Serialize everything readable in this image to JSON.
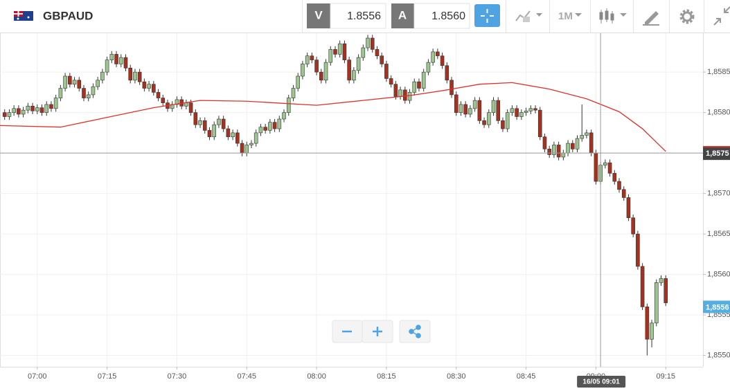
{
  "toolbar": {
    "symbol": "GBPAUD",
    "bid_label": "V",
    "bid": "1.8556",
    "ask_label": "A",
    "ask": "1.8560",
    "timeframe": "1M"
  },
  "chart_data": {
    "type": "candlestick",
    "up_color": "#9cc58f",
    "down_color": "#a5321f",
    "x": [
      "06:53",
      "06:54",
      "06:55",
      "06:56",
      "06:57",
      "06:58",
      "06:59",
      "07:00",
      "07:01",
      "07:02",
      "07:03",
      "07:04",
      "07:05",
      "07:06",
      "07:07",
      "07:08",
      "07:09",
      "07:10",
      "07:11",
      "07:12",
      "07:13",
      "07:14",
      "07:15",
      "07:16",
      "07:17",
      "07:18",
      "07:19",
      "07:20",
      "07:21",
      "07:22",
      "07:23",
      "07:24",
      "07:25",
      "07:26",
      "07:27",
      "07:28",
      "07:29",
      "07:30",
      "07:31",
      "07:32",
      "07:33",
      "07:34",
      "07:35",
      "07:36",
      "07:37",
      "07:38",
      "07:39",
      "07:40",
      "07:41",
      "07:42",
      "07:43",
      "07:44",
      "07:45",
      "07:46",
      "07:47",
      "07:48",
      "07:49",
      "07:50",
      "07:51",
      "07:52",
      "07:53",
      "07:54",
      "07:55",
      "07:56",
      "07:57",
      "07:58",
      "07:59",
      "08:00",
      "08:01",
      "08:02",
      "08:03",
      "08:04",
      "08:05",
      "08:06",
      "08:07",
      "08:08",
      "08:09",
      "08:10",
      "08:11",
      "08:12",
      "08:13",
      "08:14",
      "08:15",
      "08:16",
      "08:17",
      "08:18",
      "08:19",
      "08:20",
      "08:21",
      "08:22",
      "08:23",
      "08:24",
      "08:25",
      "08:26",
      "08:27",
      "08:28",
      "08:29",
      "08:30",
      "08:31",
      "08:32",
      "08:33",
      "08:34",
      "08:35",
      "08:36",
      "08:37",
      "08:38",
      "08:39",
      "08:40",
      "08:41",
      "08:42",
      "08:43",
      "08:44",
      "08:45",
      "08:46",
      "08:47",
      "08:48",
      "08:49",
      "08:50",
      "08:51",
      "08:52",
      "08:53",
      "08:54",
      "08:55",
      "08:56",
      "08:57",
      "08:58",
      "08:59",
      "09:00",
      "09:01",
      "09:02",
      "09:03",
      "09:04",
      "09:05",
      "09:06",
      "09:07",
      "09:08",
      "09:09",
      "09:10",
      "09:11",
      "09:12",
      "09:13",
      "09:14",
      "09:15"
    ],
    "open": [
      1.858,
      1.85795,
      1.858,
      1.85805,
      1.85798,
      1.85803,
      1.85808,
      1.85802,
      1.85806,
      1.858,
      1.8581,
      1.85805,
      1.85818,
      1.8583,
      1.85845,
      1.85835,
      1.8584,
      1.8583,
      1.85818,
      1.85822,
      1.85832,
      1.8584,
      1.8585,
      1.85865,
      1.85872,
      1.8586,
      1.85868,
      1.85855,
      1.8584,
      1.8585,
      1.85838,
      1.8583,
      1.85835,
      1.85825,
      1.85818,
      1.85812,
      1.85805,
      1.8581,
      1.85816,
      1.85808,
      1.85812,
      1.858,
      1.85785,
      1.8579,
      1.85778,
      1.8577,
      1.85785,
      1.85792,
      1.8578,
      1.8577,
      1.85775,
      1.85762,
      1.8575,
      1.8576,
      1.85762,
      1.85775,
      1.85782,
      1.85778,
      1.85788,
      1.8578,
      1.85792,
      1.858,
      1.85818,
      1.8583,
      1.85845,
      1.8586,
      1.8587,
      1.85865,
      1.8585,
      1.8584,
      1.85862,
      1.85878,
      1.85872,
      1.85885,
      1.85865,
      1.8584,
      1.85852,
      1.85868,
      1.8588,
      1.85892,
      1.85878,
      1.8587,
      1.8586,
      1.85842,
      1.85835,
      1.8582,
      1.85828,
      1.85815,
      1.85825,
      1.85838,
      1.8583,
      1.8585,
      1.85862,
      1.85875,
      1.8587,
      1.85858,
      1.8584,
      1.85822,
      1.858,
      1.8581,
      1.85798,
      1.85805,
      1.85815,
      1.8579,
      1.85785,
      1.858,
      1.85815,
      1.8579,
      1.8578,
      1.858,
      1.85805,
      1.85795,
      1.858,
      1.85802,
      1.85805,
      1.85803,
      1.8577,
      1.85755,
      1.85748,
      1.8576,
      1.85745,
      1.8575,
      1.85762,
      1.85755,
      1.85768,
      1.85772,
      1.85775,
      1.8575,
      1.85715,
      1.85735,
      1.85738,
      1.85725,
      1.85715,
      1.85705,
      1.85695,
      1.8567,
      1.8565,
      1.8561,
      1.8556,
      1.8552,
      1.8554,
      1.8559,
      1.85595
    ],
    "high": [
      1.85804,
      1.85804,
      1.85809,
      1.85809,
      1.85807,
      1.85812,
      1.85812,
      1.8581,
      1.8581,
      1.85814,
      1.85814,
      1.85822,
      1.85834,
      1.85849,
      1.85849,
      1.85844,
      1.85844,
      1.85834,
      1.85826,
      1.85836,
      1.85844,
      1.85854,
      1.85869,
      1.85876,
      1.85876,
      1.85872,
      1.85872,
      1.85859,
      1.85854,
      1.85854,
      1.85842,
      1.85839,
      1.85839,
      1.85829,
      1.85822,
      1.85816,
      1.85814,
      1.8582,
      1.8582,
      1.85816,
      1.85816,
      1.85804,
      1.85794,
      1.85794,
      1.85782,
      1.85789,
      1.85796,
      1.85796,
      1.85784,
      1.85779,
      1.85779,
      1.85766,
      1.85764,
      1.85766,
      1.85779,
      1.85786,
      1.85786,
      1.85792,
      1.85792,
      1.85796,
      1.85804,
      1.85822,
      1.85834,
      1.85849,
      1.85864,
      1.85874,
      1.85874,
      1.85869,
      1.85854,
      1.85866,
      1.85882,
      1.85882,
      1.85889,
      1.85889,
      1.85869,
      1.85856,
      1.85872,
      1.85884,
      1.85896,
      1.85896,
      1.85882,
      1.85874,
      1.85864,
      1.85846,
      1.85839,
      1.85832,
      1.85832,
      1.85829,
      1.85842,
      1.85842,
      1.85854,
      1.85866,
      1.85879,
      1.85879,
      1.85874,
      1.85862,
      1.85844,
      1.85826,
      1.85814,
      1.85814,
      1.85809,
      1.85819,
      1.85819,
      1.85794,
      1.85804,
      1.85819,
      1.85819,
      1.85794,
      1.85804,
      1.85809,
      1.85809,
      1.85804,
      1.85806,
      1.85809,
      1.85809,
      1.85807,
      1.85774,
      1.85759,
      1.85764,
      1.85764,
      1.85754,
      1.85766,
      1.85766,
      1.85772,
      1.8581,
      1.85779,
      1.85779,
      1.85754,
      1.85739,
      1.85742,
      1.85742,
      1.85729,
      1.85719,
      1.85709,
      1.85699,
      1.85674,
      1.85654,
      1.85614,
      1.85564,
      1.85544,
      1.85594,
      1.85599,
      1.85599
    ],
    "low": [
      1.85791,
      1.85791,
      1.85796,
      1.85794,
      1.85794,
      1.85799,
      1.85798,
      1.85798,
      1.85796,
      1.85796,
      1.85801,
      1.85801,
      1.85814,
      1.85826,
      1.85831,
      1.85831,
      1.85826,
      1.85814,
      1.85814,
      1.85818,
      1.85828,
      1.85836,
      1.85846,
      1.85861,
      1.85856,
      1.85856,
      1.85851,
      1.85836,
      1.85836,
      1.85834,
      1.85826,
      1.85826,
      1.85821,
      1.85814,
      1.85808,
      1.85801,
      1.85801,
      1.85806,
      1.85804,
      1.85804,
      1.85796,
      1.85781,
      1.85781,
      1.85774,
      1.85766,
      1.85766,
      1.85781,
      1.85776,
      1.85766,
      1.85766,
      1.85758,
      1.85746,
      1.85746,
      1.85756,
      1.85758,
      1.85771,
      1.85774,
      1.85774,
      1.85776,
      1.85776,
      1.85788,
      1.85796,
      1.85814,
      1.85826,
      1.85841,
      1.85856,
      1.85861,
      1.85846,
      1.85836,
      1.85836,
      1.85858,
      1.85868,
      1.85868,
      1.85861,
      1.85836,
      1.85836,
      1.85848,
      1.85864,
      1.85876,
      1.85874,
      1.85866,
      1.85856,
      1.85838,
      1.85831,
      1.85816,
      1.85816,
      1.85811,
      1.85811,
      1.85821,
      1.85826,
      1.85826,
      1.85846,
      1.85858,
      1.85866,
      1.85854,
      1.85836,
      1.85818,
      1.85796,
      1.85796,
      1.85794,
      1.85794,
      1.85801,
      1.85786,
      1.85781,
      1.85781,
      1.85796,
      1.85786,
      1.85776,
      1.85776,
      1.85796,
      1.85791,
      1.85791,
      1.85796,
      1.85798,
      1.85799,
      1.85766,
      1.85751,
      1.85744,
      1.85744,
      1.85741,
      1.85741,
      1.85746,
      1.85751,
      1.85751,
      1.85764,
      1.85768,
      1.85746,
      1.85711,
      1.85711,
      1.85731,
      1.85721,
      1.85711,
      1.85701,
      1.85691,
      1.85666,
      1.85646,
      1.85606,
      1.85556,
      1.855,
      1.8551,
      1.85536,
      1.85586,
      1.85561
    ],
    "close": [
      1.85795,
      1.858,
      1.85805,
      1.85798,
      1.85803,
      1.85808,
      1.85802,
      1.85806,
      1.858,
      1.8581,
      1.85805,
      1.85818,
      1.8583,
      1.85845,
      1.85835,
      1.8584,
      1.8583,
      1.85818,
      1.85822,
      1.85832,
      1.8584,
      1.8585,
      1.85865,
      1.85872,
      1.8586,
      1.85868,
      1.85855,
      1.8584,
      1.8585,
      1.85838,
      1.8583,
      1.85835,
      1.85825,
      1.85818,
      1.85812,
      1.85805,
      1.8581,
      1.85816,
      1.85808,
      1.85812,
      1.858,
      1.85785,
      1.8579,
      1.85778,
      1.8577,
      1.85785,
      1.85792,
      1.8578,
      1.8577,
      1.85775,
      1.85762,
      1.8575,
      1.8576,
      1.85762,
      1.85775,
      1.85782,
      1.85778,
      1.85788,
      1.8578,
      1.85792,
      1.858,
      1.85818,
      1.8583,
      1.85845,
      1.8586,
      1.8587,
      1.85865,
      1.8585,
      1.8584,
      1.85862,
      1.85878,
      1.85872,
      1.85885,
      1.85865,
      1.8584,
      1.85852,
      1.85868,
      1.8588,
      1.85892,
      1.85878,
      1.8587,
      1.8586,
      1.85842,
      1.85835,
      1.8582,
      1.85828,
      1.85815,
      1.85825,
      1.85838,
      1.8583,
      1.8585,
      1.85862,
      1.85875,
      1.8587,
      1.85858,
      1.8584,
      1.85822,
      1.858,
      1.8581,
      1.85798,
      1.85805,
      1.85815,
      1.8579,
      1.85785,
      1.858,
      1.85815,
      1.8579,
      1.8578,
      1.858,
      1.85805,
      1.85795,
      1.858,
      1.85802,
      1.85805,
      1.85803,
      1.8577,
      1.85755,
      1.85748,
      1.8576,
      1.85745,
      1.8575,
      1.85762,
      1.85755,
      1.85768,
      1.85772,
      1.85775,
      1.8575,
      1.85715,
      1.85735,
      1.85738,
      1.85725,
      1.85715,
      1.85705,
      1.85695,
      1.8567,
      1.8565,
      1.8561,
      1.8556,
      1.8552,
      1.8554,
      1.8559,
      1.85595,
      1.85565
    ],
    "moving_average": {
      "color": "#e0302a",
      "x": [
        "06:52",
        "07:05",
        "07:15",
        "07:25",
        "07:35",
        "07:45",
        "08:00",
        "08:10",
        "08:20",
        "08:27",
        "08:35",
        "08:42",
        "08:50",
        "08:58",
        "09:05",
        "09:10",
        "09:15"
      ],
      "values": [
        1.85784,
        1.85782,
        1.85794,
        1.85806,
        1.85815,
        1.85814,
        1.85809,
        1.85815,
        1.85821,
        1.85827,
        1.85835,
        1.85837,
        1.85829,
        1.85817,
        1.85801,
        1.8578,
        1.85752
      ]
    },
    "xlim": [
      "06:52",
      "09:23"
    ],
    "xticks": [
      "07:00",
      "07:15",
      "07:30",
      "07:45",
      "08:00",
      "08:15",
      "08:30",
      "08:45",
      "09:00",
      "09:15"
    ],
    "ylim": [
      1.85486,
      1.85898
    ],
    "yticks": [
      {
        "value": 1.855,
        "label": "1,8550"
      },
      {
        "value": 1.8555,
        "label": "1,8555"
      },
      {
        "value": 1.856,
        "label": "1,8560"
      },
      {
        "value": 1.8565,
        "label": "1,8565"
      },
      {
        "value": 1.857,
        "label": "1,8570"
      },
      {
        "value": 1.8575,
        "label": "1,8575"
      },
      {
        "value": 1.858,
        "label": "1,8580"
      },
      {
        "value": 1.8585,
        "label": "1,8585"
      }
    ],
    "grid": true,
    "last_price": {
      "value": 1.8556,
      "label": "1,8556",
      "color": "#55aee0"
    },
    "crosshair": {
      "x": "09:01",
      "y": 1.8575,
      "x_label": "16/05 09:01",
      "y_label": "1,8575"
    }
  }
}
